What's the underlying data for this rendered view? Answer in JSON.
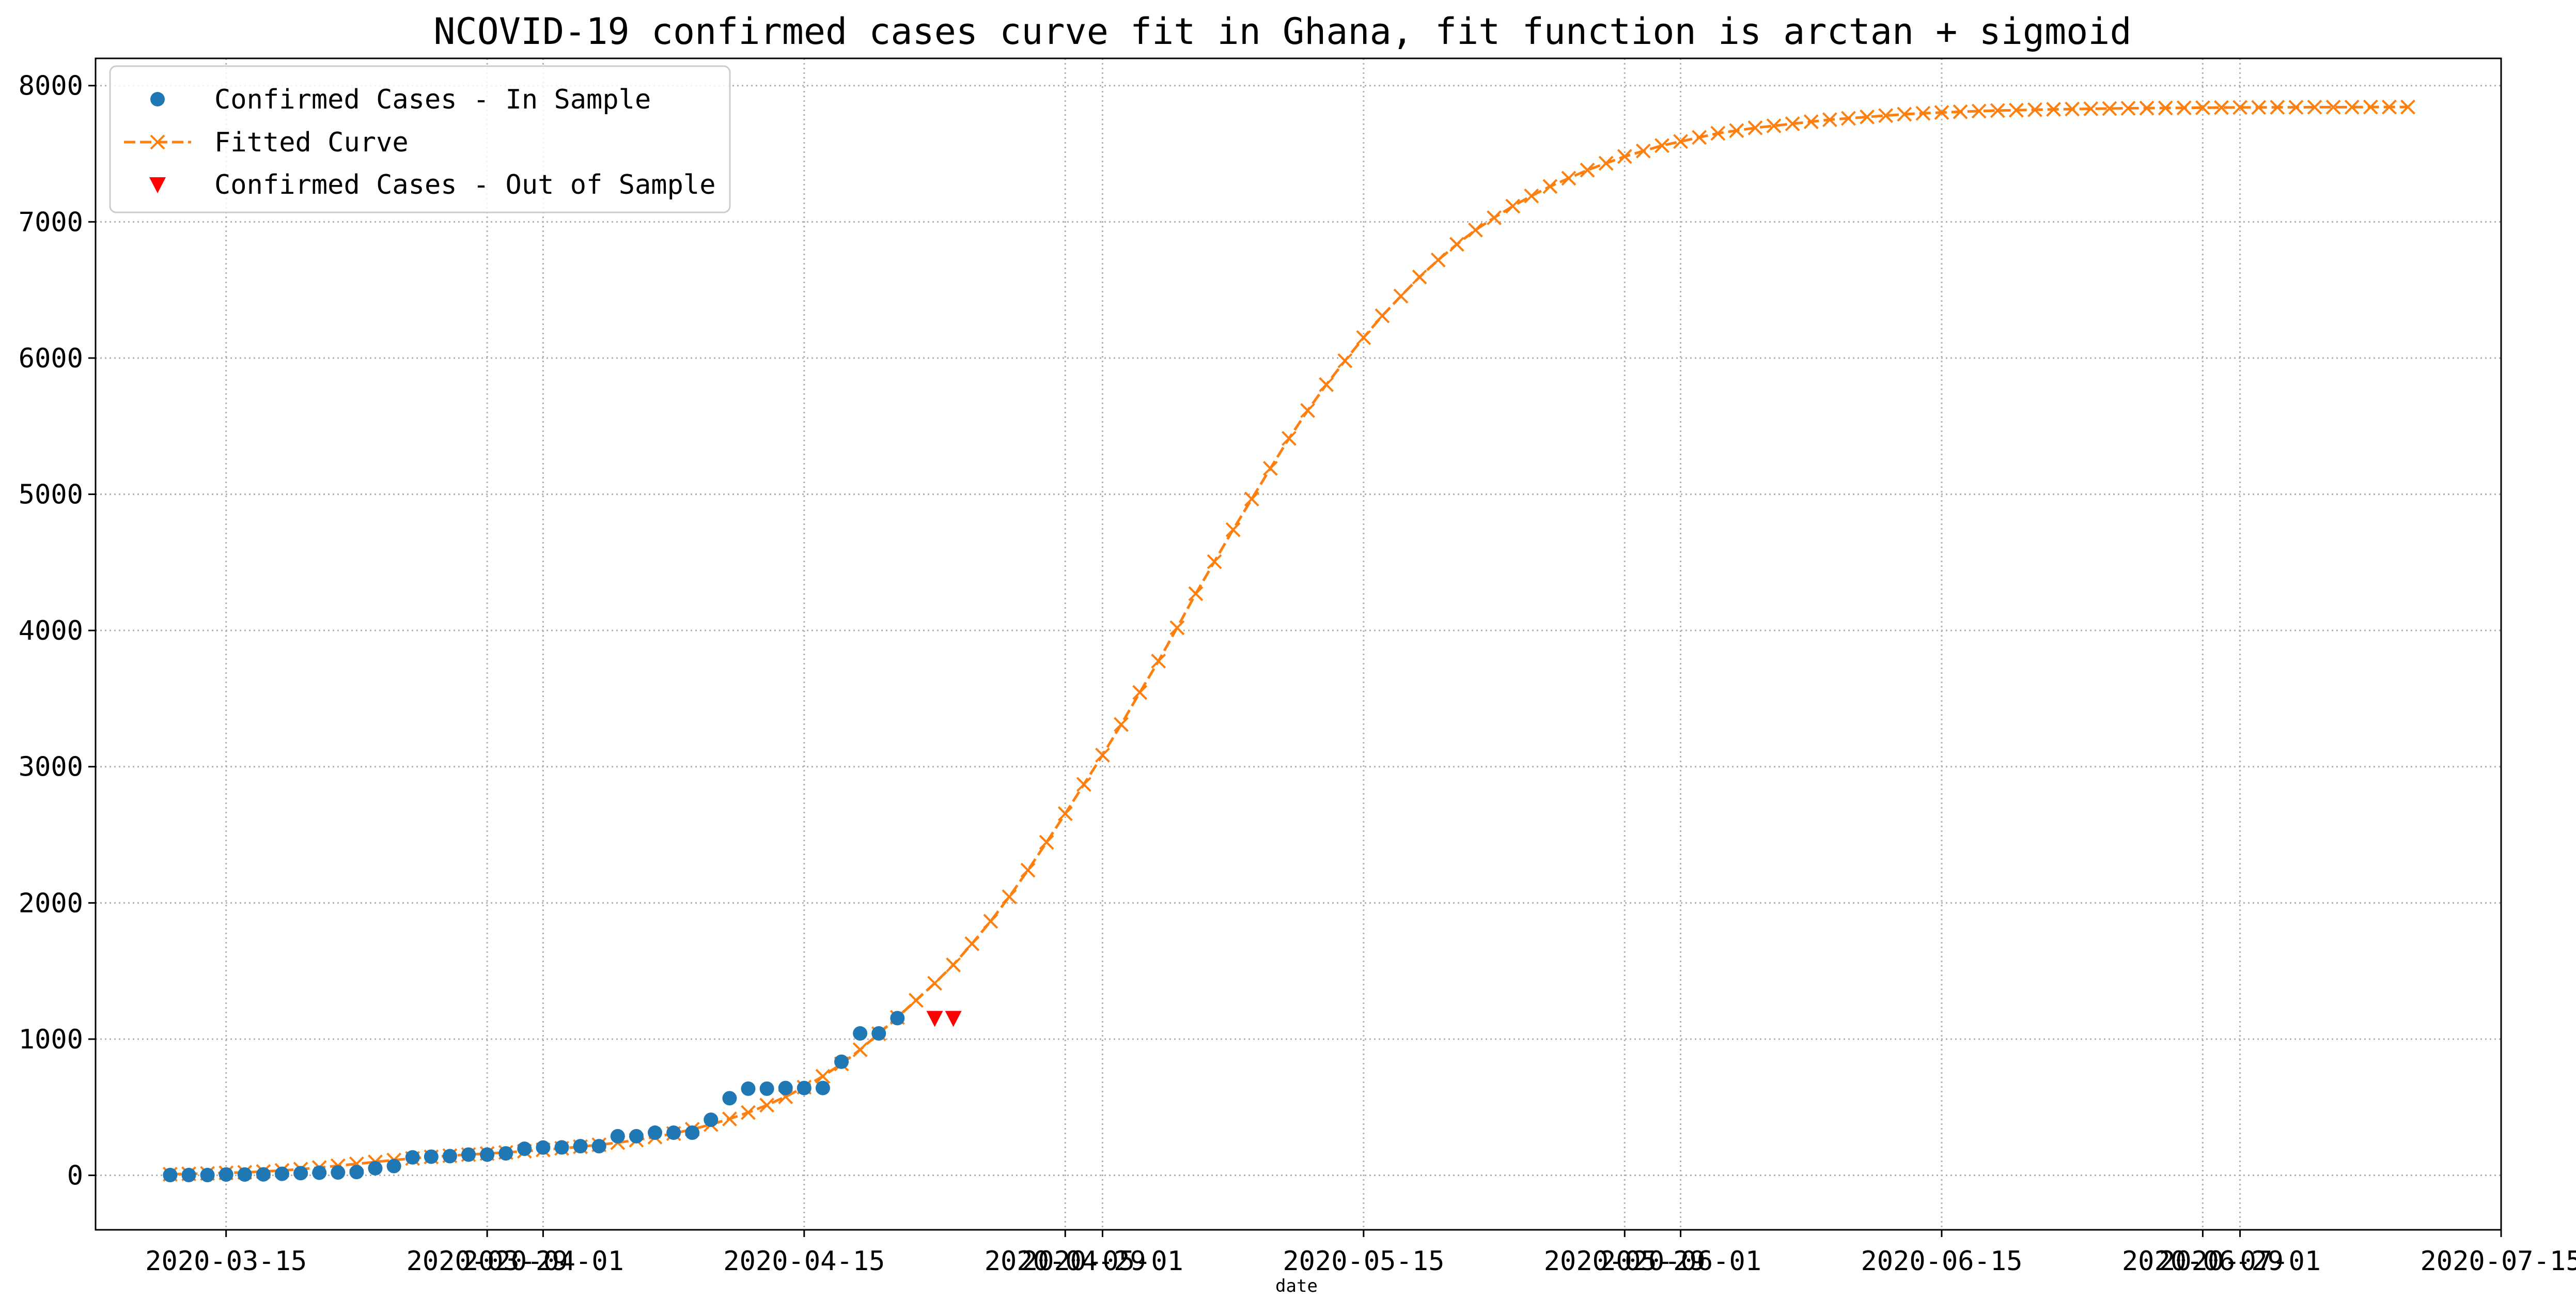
{
  "chart_data": {
    "type": "scatter",
    "title": "NCOVID-19 confirmed cases curve fit in Ghana, fit function is arctan + sigmoid",
    "xlabel": "date",
    "ylabel": "",
    "grid": true,
    "legend_placement": "upper-left",
    "x_type": "date",
    "xlim": [
      "2020-03-08",
      "2020-07-15"
    ],
    "ylim": [
      -400,
      8200
    ],
    "y_ticks": [
      0,
      1000,
      2000,
      3000,
      4000,
      5000,
      6000,
      7000,
      8000
    ],
    "y_tick_labels": [
      "0",
      "1000",
      "2000",
      "3000",
      "4000",
      "5000",
      "6000",
      "7000",
      "8000"
    ],
    "x_ticks": [
      {
        "date": "2020-03-15",
        "label": "2020-03-15"
      },
      {
        "date": "2020-03-29",
        "label": "2020-03-29"
      },
      {
        "date": "2020-04-01",
        "label": "2020-04-01"
      },
      {
        "date": "2020-04-15",
        "label": "2020-04-15"
      },
      {
        "date": "2020-04-29",
        "label": "2020-04-29"
      },
      {
        "date": "2020-05-01",
        "label": "2020-05-01"
      },
      {
        "date": "2020-05-15",
        "label": "2020-05-15"
      },
      {
        "date": "2020-05-29",
        "label": "2020-05-29"
      },
      {
        "date": "2020-06-01",
        "label": "2020-06-01"
      },
      {
        "date": "2020-06-15",
        "label": "2020-06-15"
      },
      {
        "date": "2020-06-29",
        "label": "2020-06-29"
      },
      {
        "date": "2020-07-01",
        "label": "2020-07-01"
      },
      {
        "date": "2020-07-15",
        "label": "2020-07-15"
      }
    ],
    "series": [
      {
        "name": "Confirmed Cases - In Sample",
        "marker": "circle",
        "color": "#1f77b4",
        "start_date": "2020-03-12",
        "values": [
          2,
          2,
          2,
          6,
          6,
          7,
          11,
          16,
          19,
          21,
          24,
          52,
          68,
          132,
          137,
          141,
          152,
          152,
          161,
          195,
          204,
          205,
          214,
          214,
          287,
          287,
          313,
          313,
          313,
          408,
          566,
          636,
          636,
          641,
          641,
          641,
          834,
          1042,
          1042,
          1154
        ]
      },
      {
        "name": "Fitted Curve",
        "marker": "x",
        "line": "dashed",
        "color": "#ff7f0e",
        "start_date": "2020-03-12",
        "values": [
          8,
          11,
          14,
          18,
          22,
          28,
          36,
          45,
          57,
          70,
          84,
          98,
          112,
          124,
          135,
          144,
          152,
          160,
          168,
          177,
          187,
          198,
          210,
          224,
          240,
          259,
          281,
          307,
          338,
          373,
          414,
          461,
          515,
          577,
          647,
          727,
          818,
          922,
          1040,
          1160,
          1285,
          1410,
          1545,
          1700,
          1865,
          2045,
          2240,
          2445,
          2655,
          2870,
          3085,
          3310,
          3545,
          3775,
          4020,
          4270,
          4505,
          4740,
          4965,
          5190,
          5410,
          5615,
          5805,
          5980,
          6150,
          6310,
          6455,
          6595,
          6720,
          6835,
          6940,
          7030,
          7115,
          7190,
          7260,
          7320,
          7380,
          7430,
          7480,
          7520,
          7560,
          7590,
          7620,
          7650,
          7670,
          7690,
          7705,
          7720,
          7735,
          7750,
          7760,
          7770,
          7780,
          7790,
          7797,
          7803,
          7808,
          7813,
          7817,
          7820,
          7823,
          7826,
          7828,
          7830,
          7832,
          7834,
          7835,
          7836,
          7837,
          7838,
          7839,
          7840,
          7840,
          7841,
          7841,
          7842,
          7842,
          7842,
          7843,
          7843,
          7843
        ]
      },
      {
        "name": "Confirmed Cases - Out of Sample",
        "marker": "triangle-down",
        "color": "#ff0000",
        "start_date": "2020-04-22",
        "values": [
          1154,
          1154
        ]
      }
    ]
  }
}
